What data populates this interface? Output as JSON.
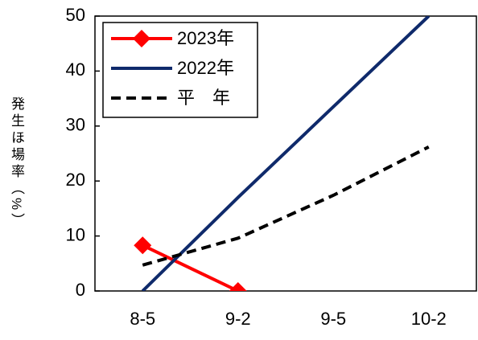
{
  "chart_data": {
    "type": "line",
    "y_label": "発生ほ場率（%）",
    "categories": [
      "8-5",
      "9-2",
      "9-5",
      "10-2"
    ],
    "series": [
      {
        "name": "2023年",
        "color": "#ff0000",
        "marker": "diamond",
        "dash": false,
        "values": [
          8.3,
          0,
          null,
          null
        ]
      },
      {
        "name": "2022年",
        "color": "#0f2a6b",
        "dash": false,
        "values": [
          0,
          17,
          33.5,
          50
        ]
      },
      {
        "name": "平　年",
        "color": "#000000",
        "dash": true,
        "values": [
          4.7,
          9.6,
          17.4,
          26.2
        ]
      }
    ],
    "ylim": [
      0,
      50
    ],
    "yticks": [
      0,
      10,
      20,
      30,
      40,
      50
    ],
    "grid": false,
    "legend": "upper left"
  }
}
